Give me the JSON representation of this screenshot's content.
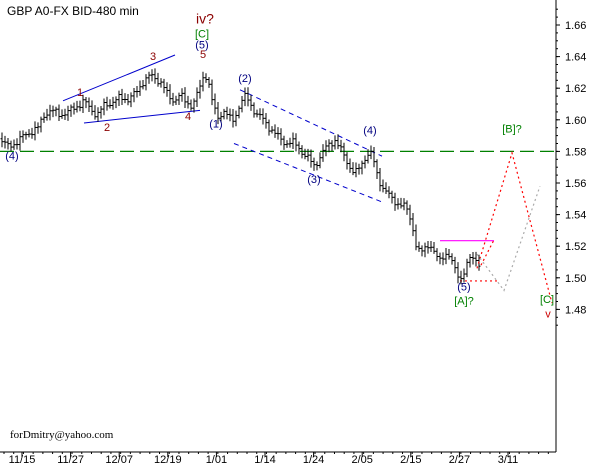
{
  "chart_data": {
    "type": "candlestick",
    "title": "GBP A0-FX BID-480 min",
    "footer": "forDmitry@yahoo.com",
    "ylim": [
      1.472,
      1.672
    ],
    "y_ticks": [
      1.48,
      1.5,
      1.52,
      1.54,
      1.56,
      1.58,
      1.6,
      1.62,
      1.64,
      1.66
    ],
    "y_tick_labels": [
      "1.48",
      "1.50",
      "1.52",
      "1.54",
      "1.56",
      "1.58",
      "1.60",
      "1.62",
      "1.64",
      "1.66"
    ],
    "x_tick_labels": [
      "11/15",
      "11/27",
      "12/07",
      "12/19",
      "1/01",
      "1/14",
      "1/24",
      "2/05",
      "2/15",
      "2/27",
      "3/11"
    ],
    "grid": false,
    "price_path": [
      [
        0,
        1.588
      ],
      [
        8,
        1.583
      ],
      [
        15,
        1.585
      ],
      [
        22,
        1.589
      ],
      [
        30,
        1.592
      ],
      [
        38,
        1.595
      ],
      [
        45,
        1.604
      ],
      [
        52,
        1.606
      ],
      [
        60,
        1.603
      ],
      [
        68,
        1.605
      ],
      [
        76,
        1.608
      ],
      [
        84,
        1.612
      ],
      [
        90,
        1.607
      ],
      [
        97,
        1.603
      ],
      [
        104,
        1.609
      ],
      [
        112,
        1.611
      ],
      [
        120,
        1.614
      ],
      [
        128,
        1.613
      ],
      [
        136,
        1.617
      ],
      [
        143,
        1.624
      ],
      [
        150,
        1.628
      ],
      [
        156,
        1.626
      ],
      [
        162,
        1.623
      ],
      [
        168,
        1.615
      ],
      [
        174,
        1.612
      ],
      [
        180,
        1.616
      ],
      [
        186,
        1.611
      ],
      [
        192,
        1.609
      ],
      [
        196,
        1.614
      ],
      [
        200,
        1.621
      ],
      [
        205,
        1.63
      ],
      [
        209,
        1.622
      ],
      [
        213,
        1.609
      ],
      [
        218,
        1.601
      ],
      [
        223,
        1.606
      ],
      [
        228,
        1.603
      ],
      [
        232,
        1.598
      ],
      [
        237,
        1.605
      ],
      [
        241,
        1.612
      ],
      [
        246,
        1.615
      ],
      [
        251,
        1.609
      ],
      [
        256,
        1.604
      ],
      [
        262,
        1.601
      ],
      [
        268,
        1.596
      ],
      [
        274,
        1.592
      ],
      [
        280,
        1.588
      ],
      [
        286,
        1.585
      ],
      [
        292,
        1.586
      ],
      [
        298,
        1.583
      ],
      [
        304,
        1.578
      ],
      [
        309,
        1.575
      ],
      [
        314,
        1.571
      ],
      [
        319,
        1.575
      ],
      [
        324,
        1.581
      ],
      [
        330,
        1.585
      ],
      [
        335,
        1.587
      ],
      [
        340,
        1.582
      ],
      [
        345,
        1.576
      ],
      [
        350,
        1.57
      ],
      [
        355,
        1.566
      ],
      [
        360,
        1.57
      ],
      [
        365,
        1.576
      ],
      [
        370,
        1.58
      ],
      [
        374,
        1.573
      ],
      [
        378,
        1.563
      ],
      [
        383,
        1.557
      ],
      [
        388,
        1.553
      ],
      [
        393,
        1.549
      ],
      [
        398,
        1.547
      ],
      [
        403,
        1.546
      ],
      [
        408,
        1.542
      ],
      [
        412,
        1.534
      ],
      [
        416,
        1.521
      ],
      [
        420,
        1.515
      ],
      [
        425,
        1.519
      ],
      [
        430,
        1.522
      ],
      [
        435,
        1.514
      ],
      [
        440,
        1.511
      ],
      [
        445,
        1.516
      ],
      [
        450,
        1.513
      ],
      [
        454,
        1.506
      ],
      [
        458,
        1.502
      ],
      [
        461,
        1.5
      ],
      [
        465,
        1.505
      ],
      [
        470,
        1.512
      ],
      [
        475,
        1.513
      ],
      [
        479,
        1.509
      ]
    ],
    "level_lines": [
      {
        "label": "[B]?",
        "y": 1.58,
        "x0": 0,
        "x1": 556,
        "color": "#008000",
        "style": "long-dash"
      },
      {
        "y": 1.5235,
        "x0": 440,
        "x1": 494,
        "color": "#ff00ff",
        "style": "solid"
      },
      {
        "y": 1.498,
        "x0": 460,
        "x1": 500,
        "color": "#ff0000",
        "style": "dotted"
      }
    ],
    "wave_labels": [
      {
        "text": "(4)",
        "x": 12,
        "y": 1.575,
        "color": "#000080"
      },
      {
        "text": "1",
        "x": 80,
        "y": 1.615,
        "color": "#8b0000"
      },
      {
        "text": "2",
        "x": 107,
        "y": 1.593,
        "color": "#8b0000"
      },
      {
        "text": "3",
        "x": 153,
        "y": 1.638,
        "color": "#8b0000"
      },
      {
        "text": "4",
        "x": 188,
        "y": 1.6,
        "color": "#8b0000"
      },
      {
        "text": "5",
        "x": 203,
        "y": 1.639,
        "color": "#8b0000"
      },
      {
        "text": "iv?",
        "x": 205,
        "y": 1.661,
        "color": "#8b0000",
        "big": true
      },
      {
        "text": "[C]",
        "x": 202,
        "y": 1.652,
        "color": "#008000"
      },
      {
        "text": "(5)",
        "x": 202,
        "y": 1.645,
        "color": "#000080"
      },
      {
        "text": "(1)",
        "x": 216,
        "y": 1.595,
        "color": "#000080"
      },
      {
        "text": "(2)",
        "x": 245,
        "y": 1.624,
        "color": "#000080"
      },
      {
        "text": "(3)",
        "x": 314,
        "y": 1.56,
        "color": "#000080"
      },
      {
        "text": "(4)",
        "x": 370,
        "y": 1.591,
        "color": "#000080"
      },
      {
        "text": "[B]?",
        "x": 512,
        "y": 1.592,
        "color": "#008000"
      },
      {
        "text": "(5)",
        "x": 464,
        "y": 1.492,
        "color": "#000080"
      },
      {
        "text": "[A]?",
        "x": 464,
        "y": 1.483,
        "color": "#008000"
      },
      {
        "text": "[C]",
        "x": 547,
        "y": 1.484,
        "color": "#008000"
      },
      {
        "text": "v",
        "x": 548,
        "y": 1.475,
        "color": "#cc0000"
      }
    ],
    "trendlines": [
      {
        "points": [
          [
            63,
            1.612
          ],
          [
            175,
            1.641
          ]
        ],
        "color": "#0000cc",
        "style": "solid"
      },
      {
        "points": [
          [
            84,
            1.598
          ],
          [
            200,
            1.606
          ]
        ],
        "color": "#0000cc",
        "style": "solid"
      },
      {
        "points": [
          [
            240,
            1.619
          ],
          [
            382,
            1.577
          ]
        ],
        "color": "#0000cc",
        "style": "dashed"
      },
      {
        "points": [
          [
            234,
            1.585
          ],
          [
            382,
            1.548
          ]
        ],
        "color": "#0000cc",
        "style": "dashed"
      }
    ],
    "projections": [
      {
        "points": [
          [
            477,
            1.506
          ],
          [
            512,
            1.579
          ],
          [
            552,
            1.484
          ]
        ],
        "color": "#ff0000",
        "style": "dotted"
      },
      {
        "points": [
          [
            481,
            1.508
          ],
          [
            494,
            1.524
          ]
        ],
        "color": "#ff0000",
        "style": "dotted"
      },
      {
        "points": [
          [
            477,
            1.515
          ],
          [
            504,
            1.492
          ],
          [
            540,
            1.558
          ]
        ],
        "color": "#aaaaaa",
        "style": "dotted"
      }
    ]
  }
}
